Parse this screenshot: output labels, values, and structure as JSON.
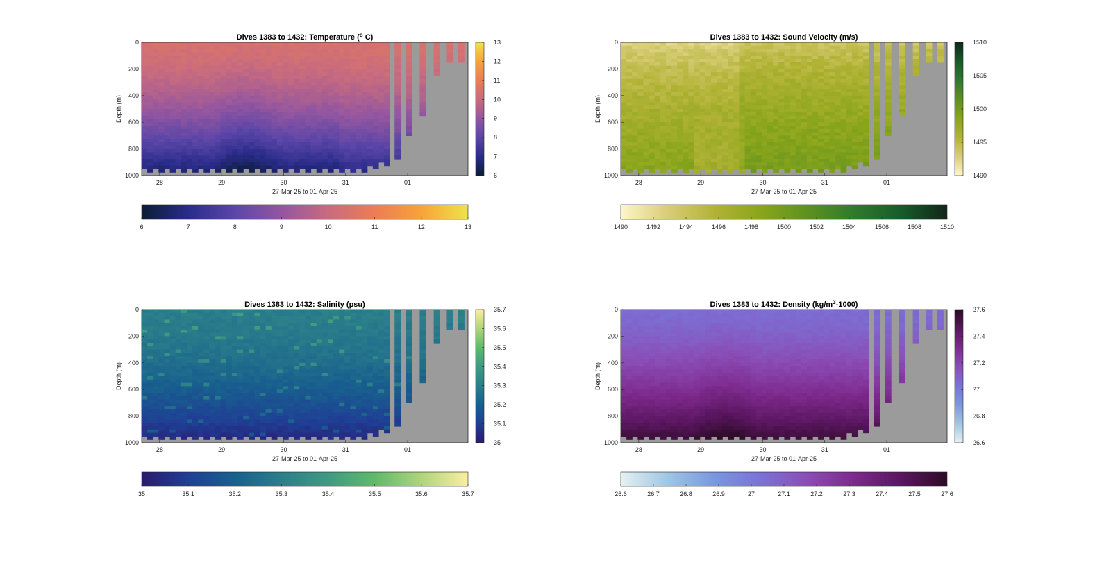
{
  "figure": {
    "panels": [
      {
        "id": "temperature",
        "title_main": "Dives 1383 to 1432: Temperature (",
        "title_sup": "o",
        "title_tail": " C)",
        "ylabel": "Depth (m)",
        "xlabel": "27-Mar-25 to 01-Apr-25",
        "xticks": [
          "28",
          "29",
          "30",
          "31",
          "01"
        ],
        "yticks": [
          "0",
          "200",
          "400",
          "600",
          "800",
          "1000"
        ],
        "colorbar_ticks_vertical": [
          "13",
          "12",
          "11",
          "10",
          "9",
          "8",
          "7",
          "6"
        ],
        "colorbar_ticks_horizontal": [
          "6",
          "7",
          "8",
          "9",
          "10",
          "11",
          "12",
          "13"
        ],
        "colormap": [
          "#0b1d35",
          "#2a2c8a",
          "#5b46a8",
          "#9456a0",
          "#c86b7e",
          "#ec7d55",
          "#f7a33a",
          "#efe34a"
        ]
      },
      {
        "id": "sound-velocity",
        "title_main": "Dives 1383 to 1432: Sound Velocity (m/s)",
        "title_sup": "",
        "title_tail": "",
        "ylabel": "Depth (m)",
        "xlabel": "27-Mar-25 to 01-Apr-25",
        "xticks": [
          "28",
          "29",
          "30",
          "31",
          "01"
        ],
        "yticks": [
          "0",
          "200",
          "400",
          "600",
          "800",
          "1000"
        ],
        "colorbar_ticks_vertical": [
          "1510",
          "1505",
          "1500",
          "1495",
          "1490"
        ],
        "colorbar_ticks_horizontal": [
          "1490",
          "1492",
          "1494",
          "1496",
          "1498",
          "1500",
          "1502",
          "1504",
          "1506",
          "1508",
          "1510"
        ],
        "colormap": [
          "#fdf6c8",
          "#d9cd78",
          "#b2b336",
          "#8aa51b",
          "#5e9121",
          "#2f7a2c",
          "#165c2a",
          "#112619"
        ]
      },
      {
        "id": "salinity",
        "title_main": "Dives 1383 to 1432: Salinity (psu)",
        "title_sup": "",
        "title_tail": "",
        "ylabel": "Depth (m)",
        "xlabel": "27-Mar-25 to 01-Apr-25",
        "xticks": [
          "28",
          "29",
          "30",
          "31",
          "01"
        ],
        "yticks": [
          "0",
          "200",
          "400",
          "600",
          "800",
          "1000"
        ],
        "colorbar_ticks_vertical": [
          "35.7",
          "35.6",
          "35.5",
          "35.4",
          "35.3",
          "35.2",
          "35.1",
          "35"
        ],
        "colorbar_ticks_horizontal": [
          "35",
          "35.1",
          "35.2",
          "35.3",
          "35.4",
          "35.5",
          "35.6",
          "35.7"
        ],
        "colormap": [
          "#2a1a6e",
          "#1f3f95",
          "#18608e",
          "#2b7f8a",
          "#3f9a82",
          "#5fba6b",
          "#b0d47c",
          "#fbeea1"
        ]
      },
      {
        "id": "density",
        "title_main": "Dives 1383 to 1432: Density (kg/m",
        "title_sup": "3",
        "title_tail": "-1000)",
        "ylabel": "Depth (m)",
        "xlabel": "27-Mar-25 to 01-Apr-25",
        "xticks": [
          "28",
          "29",
          "30",
          "31",
          "01"
        ],
        "yticks": [
          "0",
          "200",
          "400",
          "600",
          "800",
          "1000"
        ],
        "colorbar_ticks_vertical": [
          "27.6",
          "27.4",
          "27.2",
          "27",
          "26.8",
          "26.6"
        ],
        "colorbar_ticks_horizontal": [
          "26.6",
          "26.7",
          "26.8",
          "26.9",
          "27",
          "27.1",
          "27.2",
          "27.3",
          "27.4",
          "27.5",
          "27.6"
        ],
        "colormap": [
          "#e6f1f1",
          "#9fc6e4",
          "#7a97e0",
          "#7b72d6",
          "#8a4db6",
          "#7e2a8d",
          "#5a1660",
          "#2c0b25"
        ]
      }
    ]
  },
  "chart_data": [
    {
      "type": "heatmap",
      "title": "Dives 1383 to 1432: Temperature (o C)",
      "xlabel": "27-Mar-25 to 01-Apr-25",
      "ylabel": "Depth (m)",
      "x_ticks": [
        "28",
        "29",
        "30",
        "31",
        "01"
      ],
      "y_range": [
        0,
        1000
      ],
      "y_reversed": true,
      "color_range": [
        6,
        13
      ],
      "profile_depths": [
        0,
        100,
        200,
        300,
        400,
        500,
        600,
        700,
        800,
        900,
        1000
      ],
      "profile_values_typical": [
        10.4,
        10.3,
        10.2,
        10.0,
        9.8,
        9.4,
        9.0,
        8.5,
        8.0,
        7.5,
        7.0
      ],
      "max_depth_late_dives": [
        870,
        700,
        540,
        240,
        160,
        160
      ],
      "missing_color": "#9b9b9b"
    },
    {
      "type": "heatmap",
      "title": "Dives 1383 to 1432: Sound Velocity (m/s)",
      "xlabel": "27-Mar-25 to 01-Apr-25",
      "ylabel": "Depth (m)",
      "x_ticks": [
        "28",
        "29",
        "30",
        "31",
        "01"
      ],
      "y_range": [
        0,
        1000
      ],
      "y_reversed": true,
      "color_range": [
        1490,
        1510
      ],
      "profile_depths": [
        0,
        200,
        400,
        600,
        800,
        1000
      ],
      "profile_values_typical": [
        1493,
        1495,
        1496.5,
        1497.5,
        1498,
        1499
      ],
      "max_depth_late_dives": [
        870,
        700,
        540,
        240,
        160,
        160
      ],
      "missing_color": "#9b9b9b"
    },
    {
      "type": "heatmap",
      "title": "Dives 1383 to 1432: Salinity (psu)",
      "xlabel": "27-Mar-25 to 01-Apr-25",
      "ylabel": "Depth (m)",
      "x_ticks": [
        "28",
        "29",
        "30",
        "31",
        "01"
      ],
      "y_range": [
        0,
        1000
      ],
      "y_reversed": true,
      "color_range": [
        35,
        35.7
      ],
      "profile_depths": [
        0,
        200,
        400,
        600,
        800,
        1000
      ],
      "profile_values_typical": [
        35.29,
        35.27,
        35.24,
        35.2,
        35.15,
        35.08
      ],
      "max_depth_late_dives": [
        870,
        700,
        540,
        240,
        160,
        160
      ],
      "missing_color": "#9b9b9b"
    },
    {
      "type": "heatmap",
      "title": "Dives 1383 to 1432: Density (kg/m3-1000)",
      "xlabel": "27-Mar-25 to 01-Apr-25",
      "ylabel": "Depth (m)",
      "x_ticks": [
        "28",
        "29",
        "30",
        "31",
        "01"
      ],
      "y_range": [
        0,
        1000
      ],
      "y_reversed": true,
      "color_range": [
        26.6,
        27.6
      ],
      "profile_depths": [
        0,
        200,
        400,
        600,
        800,
        1000
      ],
      "profile_values_typical": [
        27.05,
        27.08,
        27.12,
        27.2,
        27.3,
        27.42
      ],
      "max_depth_late_dives": [
        870,
        700,
        540,
        240,
        160,
        160
      ],
      "missing_color": "#9b9b9b"
    }
  ]
}
